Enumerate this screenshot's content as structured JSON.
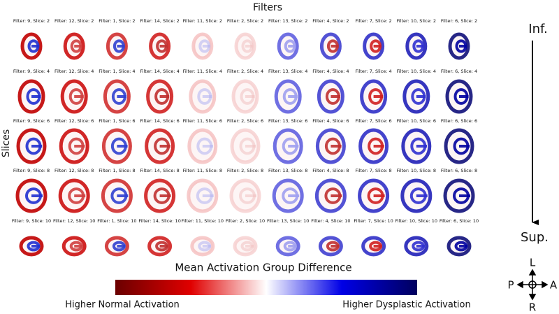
{
  "title": "Filters",
  "row_axis_label": "Slices",
  "panels": {
    "rows": [
      [
        "Filter: 9, Slice: 2",
        "Filter: 12, Slice: 2",
        "Filter: 1, Slice: 2",
        "Filter: 14, Slice: 2",
        "Filter: 11, Slice: 2",
        "Filter: 2, Slice: 2",
        "Filter: 13, Slice: 2",
        "Filter: 4, Slice: 2",
        "Filter: 7, Slice: 2",
        "Filter: 10, Slice: 2",
        "Filter: 6, Slice: 2"
      ],
      [
        "Filter: 9, Slice: 4",
        "Filter: 12, Slice: 4",
        "Filter: 1, Slice: 4",
        "Filter: 14, Slice: 4",
        "Filter: 11, Slice: 4",
        "Filter: 2, Slice: 4",
        "Filter: 13, Slice: 4",
        "Filter: 4, Slice: 4",
        "Filter: 7, Slice: 4",
        "Filter: 10, Slice: 4",
        "Filter: 6, Slice: 4"
      ],
      [
        "Filter: 9, Slice: 6",
        "Filter: 12, Slice: 6",
        "Filter: 1, Slice: 6",
        "Filter: 14, Slice: 6",
        "Filter: 11, Slice: 6",
        "Filter: 2, Slice: 6",
        "Filter: 13, Slice: 6",
        "Filter: 4, Slice: 6",
        "Filter: 7, Slice: 6",
        "Filter: 10, Slice: 6",
        "Filter: 6, Slice: 6"
      ],
      [
        "Filter: 9, Slice: 8",
        "Filter: 12, Slice: 8",
        "Filter: 1, Slice: 8",
        "Filter: 14, Slice: 8",
        "Filter: 11, Slice: 8",
        "Filter: 2, Slice: 8",
        "Filter: 13, Slice: 8",
        "Filter: 4, Slice: 8",
        "Filter: 7, Slice: 8",
        "Filter: 10, Slice: 8",
        "Filter: 6, Slice: 8"
      ],
      [
        "Filter: 9, Slice: 10",
        "Filter: 12, Slice: 10",
        "Filter: 1, Slice: 10",
        "Filter: 14, Slice: 10",
        "Filter: 11, Slice: 10",
        "Filter: 2, Slice: 10",
        "Filter: 13, Slice: 10",
        "Filter: 4, Slice: 10",
        "Filter: 7, Slice: 10",
        "Filter: 10, Slice: 10",
        "Filter: 6, Slice: 10"
      ]
    ]
  },
  "direction": {
    "top": "Inf.",
    "bottom": "Sup."
  },
  "colorbar": {
    "title": "Mean Activation Group Difference",
    "left_label": "Higher Normal Activation",
    "right_label": "Higher Dysplastic Activation"
  },
  "compass": {
    "up": "L",
    "left": "P",
    "right": "A",
    "down": "R"
  }
}
